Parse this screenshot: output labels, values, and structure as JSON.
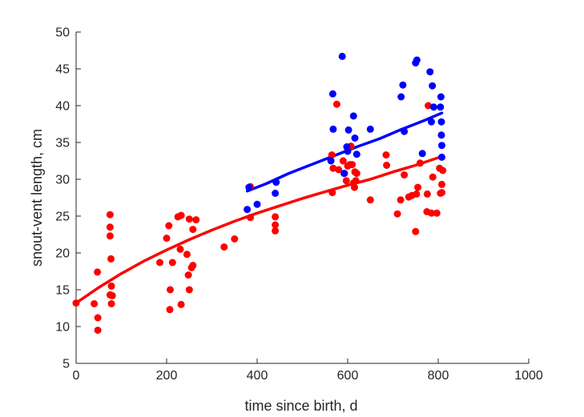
{
  "chart_data": {
    "type": "scatter",
    "title": "",
    "xlabel": "time since birth, d",
    "ylabel": "snout-vent length, cm",
    "xlim": [
      0,
      1000
    ],
    "ylim": [
      5,
      50
    ],
    "xticks": [
      0,
      200,
      400,
      600,
      800,
      1000
    ],
    "yticks": [
      5,
      10,
      15,
      20,
      25,
      30,
      35,
      40,
      45,
      50
    ],
    "grid": false,
    "colors": {
      "red": "#ff0000",
      "blue": "#0000ff",
      "axis": "#262626"
    },
    "series": [
      {
        "color": "#ff0000",
        "points": [
          [
            0,
            13.2
          ],
          [
            40,
            13.1
          ],
          [
            47,
            17.4
          ],
          [
            48,
            11.2
          ],
          [
            48,
            9.5
          ],
          [
            75,
            25.2
          ],
          [
            75,
            23.5
          ],
          [
            75,
            22.3
          ],
          [
            77,
            19.2
          ],
          [
            75,
            14.3
          ],
          [
            78,
            15.5
          ],
          [
            80,
            14.2
          ],
          [
            78,
            13.1
          ],
          [
            200,
            22
          ],
          [
            205,
            23.7
          ],
          [
            207,
            12.3
          ],
          [
            208,
            15
          ],
          [
            185,
            18.7
          ],
          [
            213,
            18.7
          ],
          [
            225,
            24.9
          ],
          [
            232,
            25.1
          ],
          [
            230,
            20.5
          ],
          [
            232,
            13
          ],
          [
            245,
            19.8
          ],
          [
            250,
            24.6
          ],
          [
            248,
            17
          ],
          [
            250,
            15
          ],
          [
            255,
            18
          ],
          [
            258,
            18.3
          ],
          [
            258,
            23.2
          ],
          [
            265,
            24.5
          ],
          [
            327,
            20.8
          ],
          [
            350,
            21.9
          ],
          [
            385,
            24.8
          ],
          [
            385,
            29
          ],
          [
            440,
            24.9
          ],
          [
            440,
            23.8
          ],
          [
            440,
            23.0
          ],
          [
            565,
            33.3
          ],
          [
            566,
            28.2
          ],
          [
            568,
            31.5
          ],
          [
            576,
            40.2
          ],
          [
            580,
            31.3
          ],
          [
            590,
            32.5
          ],
          [
            593,
            30.8
          ],
          [
            597,
            29.8
          ],
          [
            600,
            31.8
          ],
          [
            605,
            32.0
          ],
          [
            607,
            34.5
          ],
          [
            610,
            32.0
          ],
          [
            615,
            28.9
          ],
          [
            613,
            29.5
          ],
          [
            616,
            31.0
          ],
          [
            618,
            29.8
          ],
          [
            620,
            30.8
          ],
          [
            650,
            27.2
          ],
          [
            685,
            33.3
          ],
          [
            686,
            31.9
          ],
          [
            710,
            25.3
          ],
          [
            717,
            27.2
          ],
          [
            725,
            30.6
          ],
          [
            735,
            27.6
          ],
          [
            742,
            27.8
          ],
          [
            750,
            22.9
          ],
          [
            752,
            28.0
          ],
          [
            755,
            28.9
          ],
          [
            760,
            32.2
          ],
          [
            775,
            25.6
          ],
          [
            776,
            28.0
          ],
          [
            778,
            40.0
          ],
          [
            785,
            25.4
          ],
          [
            788,
            30.3
          ],
          [
            797,
            25.4
          ],
          [
            803,
            31.5
          ],
          [
            805,
            28.1
          ],
          [
            808,
            29.3
          ],
          [
            810,
            31.2
          ],
          [
            808,
            28.2
          ]
        ]
      },
      {
        "color": "#0000ff",
        "points": [
          [
            378,
            25.9
          ],
          [
            382,
            28.9
          ],
          [
            400,
            26.6
          ],
          [
            440,
            28.1
          ],
          [
            442,
            29.6
          ],
          [
            563,
            32.5
          ],
          [
            567,
            41.6
          ],
          [
            568,
            36.8
          ],
          [
            588,
            46.7
          ],
          [
            592,
            30.8
          ],
          [
            598,
            34.4
          ],
          [
            600,
            33.8
          ],
          [
            602,
            36.7
          ],
          [
            613,
            38.6
          ],
          [
            616,
            35.6
          ],
          [
            620,
            33.4
          ],
          [
            650,
            36.8
          ],
          [
            718,
            41.2
          ],
          [
            722,
            42.8
          ],
          [
            725,
            36.5
          ],
          [
            750,
            45.8
          ],
          [
            753,
            46.2
          ],
          [
            765,
            33.5
          ],
          [
            782,
            44.6
          ],
          [
            785,
            37.8
          ],
          [
            787,
            42.7
          ],
          [
            790,
            39.8
          ],
          [
            805,
            39.8
          ],
          [
            806,
            41.2
          ],
          [
            807,
            37.8
          ],
          [
            807,
            36.0
          ],
          [
            808,
            34.6
          ],
          [
            808,
            33.0
          ]
        ]
      }
    ],
    "fits": [
      {
        "color": "#ff0000",
        "curve": [
          [
            0,
            13.2
          ],
          [
            50,
            15.3
          ],
          [
            100,
            17.2
          ],
          [
            150,
            18.9
          ],
          [
            200,
            20.4
          ],
          [
            250,
            21.8
          ],
          [
            300,
            23.1
          ],
          [
            350,
            24.3
          ],
          [
            400,
            25.4
          ],
          [
            450,
            26.4
          ],
          [
            500,
            27.4
          ],
          [
            550,
            28.3
          ],
          [
            600,
            29.2
          ],
          [
            650,
            30.0
          ],
          [
            700,
            31.0
          ],
          [
            750,
            31.9
          ],
          [
            808,
            33.1
          ]
        ]
      },
      {
        "color": "#0000ff",
        "curve": [
          [
            378,
            28.4
          ],
          [
            420,
            29.4
          ],
          [
            470,
            30.8
          ],
          [
            520,
            32.0
          ],
          [
            570,
            33.2
          ],
          [
            620,
            34.4
          ],
          [
            670,
            35.5
          ],
          [
            720,
            36.8
          ],
          [
            770,
            38.0
          ],
          [
            808,
            39.0
          ]
        ]
      }
    ]
  }
}
